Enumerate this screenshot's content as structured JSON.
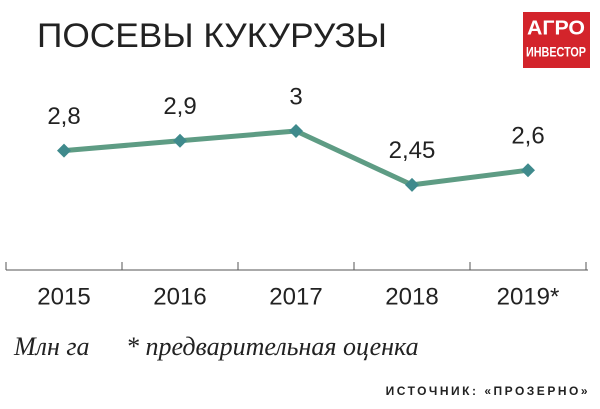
{
  "chart_data": {
    "type": "line",
    "title": "ПОСЕВЫ КУКУРУЗЫ",
    "categories": [
      "2015",
      "2016",
      "2017",
      "2018",
      "2019*"
    ],
    "values": [
      2.8,
      2.9,
      3,
      2.45,
      2.6
    ],
    "value_labels": [
      "2,8",
      "2,9",
      "3",
      "2,45",
      "2,6"
    ],
    "color": "#5e9c84",
    "marker_color": "#3f8a8c",
    "unit": "Млн га",
    "note": "* предварительная оценка",
    "source": "ИСТОЧНИК: «ПРОЗЕРНО»"
  },
  "logo": {
    "line1": "АГРО",
    "line2": "ИНВЕСТОР"
  }
}
